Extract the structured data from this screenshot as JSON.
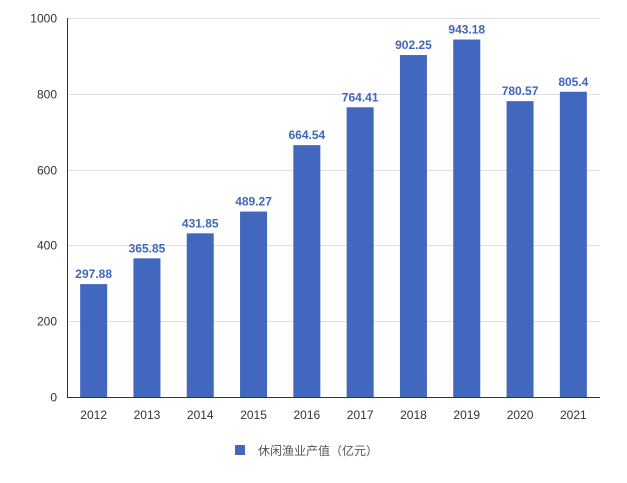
{
  "chart_data": {
    "type": "bar",
    "title": "",
    "xlabel": "",
    "ylabel": "",
    "categories": [
      "2012",
      "2013",
      "2014",
      "2015",
      "2016",
      "2017",
      "2018",
      "2019",
      "2020",
      "2021"
    ],
    "series": [
      {
        "name": "休闲渔业产值（亿元）",
        "values": [
          297.88,
          365.85,
          431.85,
          489.27,
          664.54,
          764.41,
          902.25,
          943.18,
          780.57,
          805.4
        ],
        "color": "#4267be"
      }
    ],
    "data_labels": [
      "297.88",
      "365.85",
      "431.85",
      "489.27",
      "664.54",
      "764.41",
      "902.25",
      "943.18",
      "780.57",
      "805.4"
    ],
    "ylim": [
      0,
      1000
    ],
    "yticks": [
      0,
      200,
      400,
      600,
      800,
      1000
    ],
    "grid": true,
    "legend_position": "bottom-center"
  }
}
